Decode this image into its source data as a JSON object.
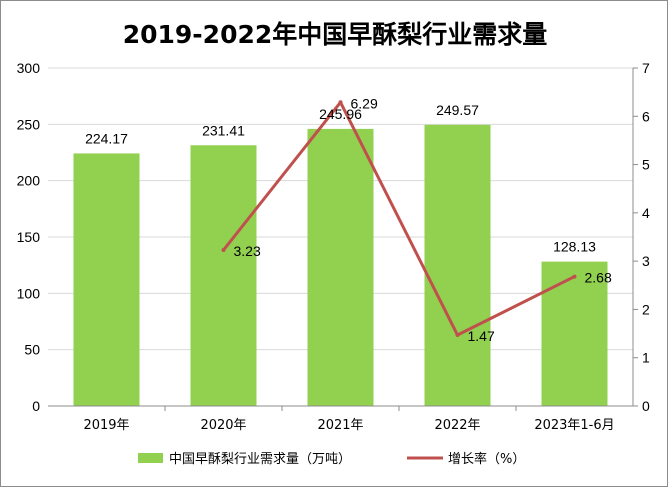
{
  "chart_data": {
    "type": "bar+line",
    "title": "2019-2022年中国早酥梨行业需求量",
    "categories": [
      "2019年",
      "2020年",
      "2021年",
      "2022年",
      "2023年1-6月"
    ],
    "series": [
      {
        "name": "中国早酥梨行业需求量（万吨）",
        "type": "bar",
        "axis": "left",
        "color": "#92d050",
        "values": [
          224.17,
          231.41,
          245.96,
          249.57,
          128.13
        ]
      },
      {
        "name": "增长率（%）",
        "type": "line",
        "axis": "right",
        "color": "#c0504d",
        "values": [
          null,
          3.23,
          6.29,
          1.47,
          2.68
        ]
      }
    ],
    "left_axis": {
      "min": 0,
      "max": 300,
      "ticks": [
        "0",
        "50",
        "100",
        "150",
        "200",
        "250",
        "300"
      ]
    },
    "right_axis": {
      "min": 0,
      "max": 7,
      "ticks": [
        "0",
        "1",
        "2",
        "3",
        "4",
        "5",
        "6",
        "7"
      ]
    },
    "grid": true,
    "legend": "bottom"
  }
}
